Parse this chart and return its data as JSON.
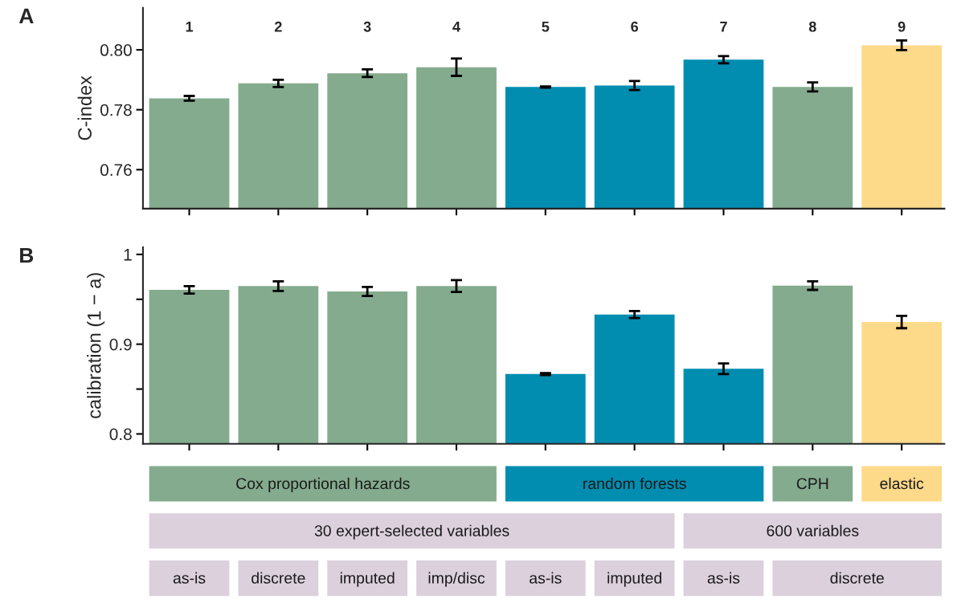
{
  "chart_data": [
    {
      "type": "bar",
      "title": "A",
      "ylabel": "C-index",
      "categories": [
        "1",
        "2",
        "3",
        "4",
        "5",
        "6",
        "7",
        "8",
        "9"
      ],
      "values": [
        0.7838,
        0.7888,
        0.7922,
        0.7942,
        0.7876,
        0.7881,
        0.7967,
        0.7876,
        0.8015
      ],
      "errors": [
        0.0008,
        0.0012,
        0.0013,
        0.0029,
        0.0002,
        0.0015,
        0.0012,
        0.0015,
        0.0016
      ],
      "colors": [
        "#84ab8e",
        "#84ab8e",
        "#84ab8e",
        "#84ab8e",
        "#008db0",
        "#008db0",
        "#008db0",
        "#84ab8e",
        "#fdd98a"
      ],
      "ylim": [
        0.747,
        0.814
      ],
      "yticks": [
        {
          "value": 0.76,
          "label": "0.76"
        },
        {
          "value": 0.78,
          "label": "0.78"
        },
        {
          "value": 0.8,
          "label": "0.80"
        }
      ],
      "grid": false,
      "legend": false
    },
    {
      "type": "bar",
      "title": "B",
      "ylabel": "calibration (1 − a)",
      "categories": [
        null,
        null,
        null,
        null,
        null,
        null,
        null,
        null,
        null
      ],
      "values": [
        0.9605,
        0.9647,
        0.9587,
        0.9647,
        0.8667,
        0.933,
        0.8726,
        0.9653,
        0.9247
      ],
      "errors": [
        0.0042,
        0.0054,
        0.005,
        0.0066,
        0.0012,
        0.0039,
        0.006,
        0.0048,
        0.0069
      ],
      "colors": [
        "#84ab8e",
        "#84ab8e",
        "#84ab8e",
        "#84ab8e",
        "#008db0",
        "#008db0",
        "#008db0",
        "#84ab8e",
        "#fdd98a"
      ],
      "ylim": [
        0.789,
        1.008
      ],
      "yticks": [
        0.8,
        {
          "value": 0.85,
          "label": null
        },
        0.9,
        {
          "value": 0.95,
          "label": null
        },
        1
      ],
      "tick_labels": "y",
      "grid": false,
      "legend": false,
      "annotations": [
        "Cox proportional hazards",
        "random forests",
        "CPH",
        "elastic",
        "30 expert-selected variables",
        "600 variables",
        "as-is",
        "discrete",
        "imputed",
        "imp/disc",
        "as-is",
        "imputed",
        "as-is",
        "discrete"
      ]
    }
  ]
}
